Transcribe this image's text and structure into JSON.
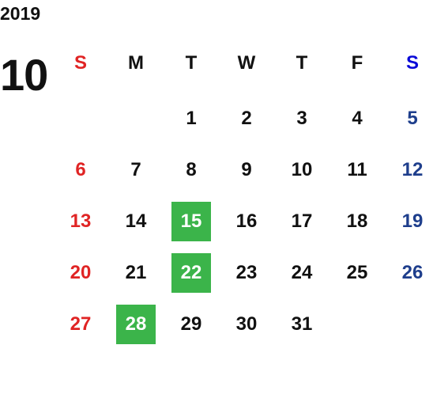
{
  "year": "2019",
  "month": "10",
  "weekdays": [
    "S",
    "M",
    "T",
    "W",
    "T",
    "F",
    "S"
  ],
  "weeks": [
    [
      null,
      null,
      1,
      2,
      3,
      4,
      5
    ],
    [
      6,
      7,
      8,
      9,
      10,
      11,
      12
    ],
    [
      13,
      14,
      15,
      16,
      17,
      18,
      19
    ],
    [
      20,
      21,
      22,
      23,
      24,
      25,
      26
    ],
    [
      27,
      28,
      29,
      30,
      31,
      null,
      null
    ]
  ],
  "highlighted_days": [
    15,
    22,
    28
  ],
  "colors": {
    "sunday": "#e02424",
    "saturday_header": "#0a0ad8",
    "saturday": "#1e3e8c",
    "weekday": "#111111",
    "highlight": "#3bb44a",
    "highlight_text": "#ffffff"
  }
}
